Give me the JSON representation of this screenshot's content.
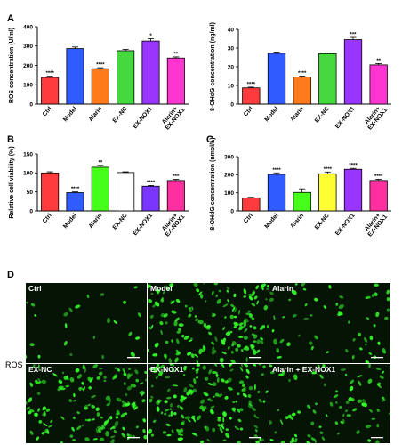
{
  "chart_data": [
    {
      "panel": "A",
      "type": "bar",
      "ylabel": "ROS concentration (U/ml)",
      "ylim": [
        0,
        400
      ],
      "yticks": [
        "0",
        "100",
        "200",
        "300",
        "400"
      ],
      "categories": [
        "Ctrl",
        "Model",
        "Alarin",
        "EX-NC",
        "EX-NOX1",
        "Alarin+ EX-NOX1"
      ],
      "values": [
        138,
        287,
        183,
        276,
        326,
        238
      ],
      "errors": [
        6,
        8,
        5,
        7,
        12,
        6
      ],
      "significance": [
        "****",
        "",
        "****",
        "",
        "*",
        "**"
      ],
      "colors": [
        "#ff3b3b",
        "#2f5bff",
        "#ff7a1a",
        "#45d93f",
        "#9a35ff",
        "#ff35d2"
      ]
    },
    {
      "panel": "",
      "type": "bar",
      "ylabel": "8-OHdG concentration (ng/ml)",
      "ylim": [
        0,
        40
      ],
      "yticks": [
        "0",
        "10",
        "20",
        "30",
        "40"
      ],
      "categories": [
        "Ctrl",
        "Model",
        "Alarin",
        "EX-NC",
        "EX-NOX1",
        "Alarin+ EX-NOX1"
      ],
      "values": [
        8.7,
        27.2,
        14.5,
        27,
        34.5,
        21
      ],
      "errors": [
        0.4,
        0.6,
        0.5,
        0.4,
        1.2,
        0.7
      ],
      "significance": [
        "****",
        "",
        "****",
        "",
        "***",
        "**"
      ],
      "colors": [
        "#ff3b3b",
        "#2f5bff",
        "#ff7a1a",
        "#45d93f",
        "#9a35ff",
        "#ff35d2"
      ]
    },
    {
      "panel": "B",
      "type": "bar",
      "ylabel": "Relative cell viability (%)",
      "ylim": [
        0,
        150
      ],
      "yticks": [
        "0",
        "50",
        "100",
        "150"
      ],
      "categories": [
        "Ctrl",
        "Model",
        "Alarin",
        "EX-NC",
        "EX-NOX1",
        "Alarin+ EX-NOX1"
      ],
      "values": [
        100,
        48,
        115,
        101,
        65,
        80
      ],
      "errors": [
        3,
        2,
        5,
        2,
        2,
        3
      ],
      "significance": [
        "",
        "****",
        "**",
        "",
        "****",
        "***"
      ],
      "colors": [
        "#ff3b3b",
        "#2f5bff",
        "#45ff1a",
        "#ffffff",
        "#7a35ff",
        "#ff2fa0"
      ]
    },
    {
      "panel": "C",
      "type": "bar",
      "ylabel": "8-OHdG concentration (nmol/L)",
      "ylim": [
        0,
        300
      ],
      "yticks": [
        "0",
        "100",
        "200",
        "300"
      ],
      "categories": [
        "Ctrl",
        "Model",
        "Alarin",
        "EX-NC",
        "EX-NOX1",
        "Alarin+ EX-NOX1"
      ],
      "values": [
        72,
        202,
        102,
        205,
        230,
        168
      ],
      "errors": [
        3,
        8,
        20,
        10,
        5,
        7
      ],
      "significance": [
        "",
        "****",
        "",
        "****",
        "****",
        "****"
      ],
      "colors": [
        "#ff3b3b",
        "#2f5bff",
        "#45ff1a",
        "#ffff33",
        "#9a35ff",
        "#ff2fa0"
      ]
    }
  ],
  "panel_d": {
    "letter": "D",
    "side_label": "ROS",
    "images": [
      "Ctrl",
      "Model",
      "Alarin",
      "EX-NC",
      "EX-NOX1",
      "Alarin + EX-NOX1"
    ],
    "density": [
      0.12,
      0.85,
      0.3,
      0.75,
      0.85,
      0.42
    ],
    "fluorescence_color": "#35ff2a",
    "background_color": "#061406"
  }
}
